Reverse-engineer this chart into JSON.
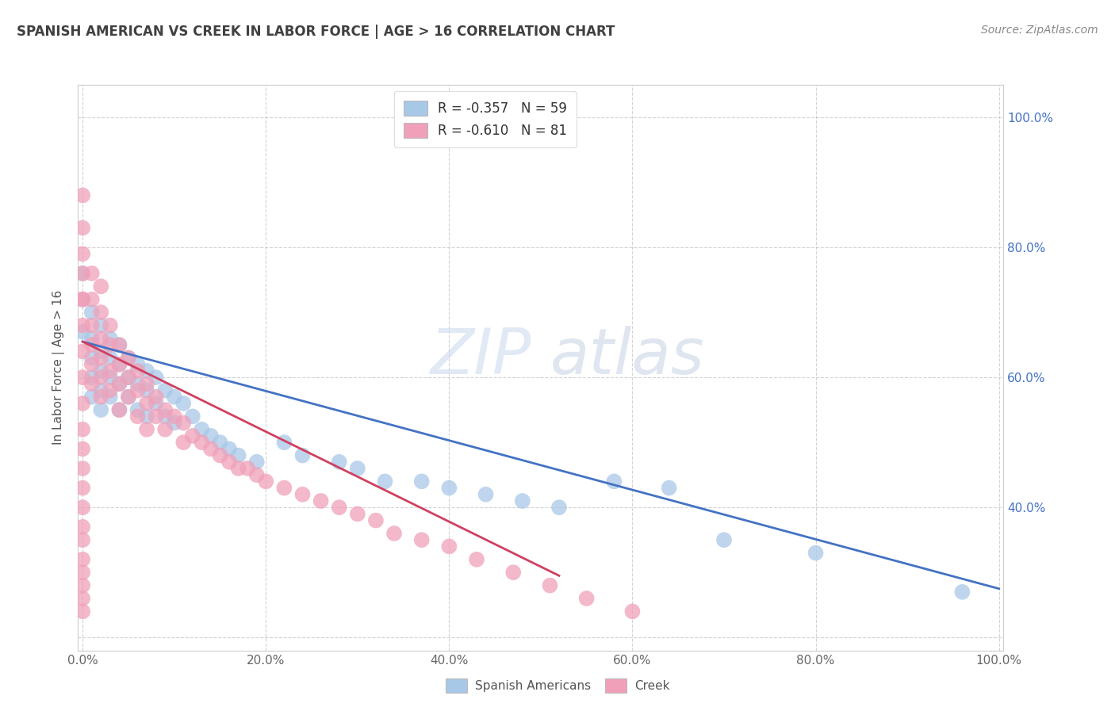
{
  "title": "SPANISH AMERICAN VS CREEK IN LABOR FORCE | AGE > 16 CORRELATION CHART",
  "source": "Source: ZipAtlas.com",
  "ylabel": "In Labor Force | Age > 16",
  "xlim": [
    -0.005,
    1.005
  ],
  "ylim": [
    0.18,
    1.05
  ],
  "xticks": [
    0.0,
    0.2,
    0.4,
    0.6,
    0.8,
    1.0
  ],
  "yticks_right": [
    0.4,
    0.6,
    0.8,
    1.0
  ],
  "xticklabels": [
    "0.0%",
    "20.0%",
    "40.0%",
    "60.0%",
    "80.0%",
    "100.0%"
  ],
  "yticklabels_right": [
    "40.0%",
    "60.0%",
    "80.0%",
    "100.0%"
  ],
  "legend_labels": [
    "Spanish Americans",
    "Creek"
  ],
  "blue_R": -0.357,
  "blue_N": 59,
  "pink_R": -0.61,
  "pink_N": 81,
  "blue_color": "#A8C8E8",
  "pink_color": "#F0A0B8",
  "blue_line_color": "#4472C4",
  "pink_line_color": "#D04060",
  "watermark_zip": "ZIP",
  "watermark_atlas": "atlas",
  "background_color": "#FFFFFF",
  "grid_color": "#C8C8C8",
  "title_color": "#404040",
  "right_axis_color": "#4472C4",
  "blue_line_x0": 0.0,
  "blue_line_y0": 0.655,
  "blue_line_x1": 1.0,
  "blue_line_y1": 0.275,
  "pink_line_x0": 0.0,
  "pink_line_y0": 0.655,
  "pink_line_x1": 0.52,
  "pink_line_y1": 0.295,
  "blue_x": [
    0.0,
    0.0,
    0.0,
    0.01,
    0.01,
    0.01,
    0.01,
    0.01,
    0.02,
    0.02,
    0.02,
    0.02,
    0.02,
    0.03,
    0.03,
    0.03,
    0.03,
    0.04,
    0.04,
    0.04,
    0.04,
    0.05,
    0.05,
    0.05,
    0.06,
    0.06,
    0.06,
    0.07,
    0.07,
    0.07,
    0.08,
    0.08,
    0.09,
    0.09,
    0.1,
    0.1,
    0.11,
    0.12,
    0.13,
    0.14,
    0.15,
    0.16,
    0.17,
    0.19,
    0.22,
    0.24,
    0.28,
    0.3,
    0.33,
    0.37,
    0.4,
    0.44,
    0.48,
    0.52,
    0.58,
    0.64,
    0.7,
    0.8,
    0.96
  ],
  "blue_y": [
    0.76,
    0.72,
    0.67,
    0.7,
    0.66,
    0.63,
    0.6,
    0.57,
    0.68,
    0.64,
    0.61,
    0.58,
    0.55,
    0.66,
    0.63,
    0.6,
    0.57,
    0.65,
    0.62,
    0.59,
    0.55,
    0.63,
    0.6,
    0.57,
    0.62,
    0.59,
    0.55,
    0.61,
    0.58,
    0.54,
    0.6,
    0.56,
    0.58,
    0.54,
    0.57,
    0.53,
    0.56,
    0.54,
    0.52,
    0.51,
    0.5,
    0.49,
    0.48,
    0.47,
    0.5,
    0.48,
    0.47,
    0.46,
    0.44,
    0.44,
    0.43,
    0.42,
    0.41,
    0.4,
    0.44,
    0.43,
    0.35,
    0.33,
    0.27
  ],
  "pink_x": [
    0.0,
    0.0,
    0.0,
    0.0,
    0.0,
    0.01,
    0.01,
    0.01,
    0.01,
    0.01,
    0.01,
    0.02,
    0.02,
    0.02,
    0.02,
    0.02,
    0.02,
    0.03,
    0.03,
    0.03,
    0.03,
    0.04,
    0.04,
    0.04,
    0.04,
    0.05,
    0.05,
    0.05,
    0.06,
    0.06,
    0.06,
    0.07,
    0.07,
    0.07,
    0.08,
    0.08,
    0.09,
    0.09,
    0.1,
    0.11,
    0.11,
    0.12,
    0.13,
    0.14,
    0.15,
    0.16,
    0.17,
    0.18,
    0.19,
    0.2,
    0.22,
    0.24,
    0.26,
    0.28,
    0.3,
    0.32,
    0.34,
    0.37,
    0.4,
    0.43,
    0.47,
    0.51,
    0.55,
    0.6,
    0.0,
    0.0,
    0.0,
    0.0,
    0.0,
    0.0,
    0.0,
    0.0,
    0.0,
    0.0,
    0.0,
    0.0,
    0.0,
    0.0,
    0.0,
    0.0,
    0.0
  ],
  "pink_y": [
    0.88,
    0.83,
    0.79,
    0.76,
    0.72,
    0.76,
    0.72,
    0.68,
    0.65,
    0.62,
    0.59,
    0.74,
    0.7,
    0.66,
    0.63,
    0.6,
    0.57,
    0.68,
    0.65,
    0.61,
    0.58,
    0.65,
    0.62,
    0.59,
    0.55,
    0.63,
    0.6,
    0.57,
    0.61,
    0.58,
    0.54,
    0.59,
    0.56,
    0.52,
    0.57,
    0.54,
    0.55,
    0.52,
    0.54,
    0.53,
    0.5,
    0.51,
    0.5,
    0.49,
    0.48,
    0.47,
    0.46,
    0.46,
    0.45,
    0.44,
    0.43,
    0.42,
    0.41,
    0.4,
    0.39,
    0.38,
    0.36,
    0.35,
    0.34,
    0.32,
    0.3,
    0.28,
    0.26,
    0.24,
    0.72,
    0.68,
    0.64,
    0.6,
    0.56,
    0.52,
    0.49,
    0.46,
    0.43,
    0.4,
    0.37,
    0.35,
    0.32,
    0.3,
    0.28,
    0.26,
    0.24
  ]
}
